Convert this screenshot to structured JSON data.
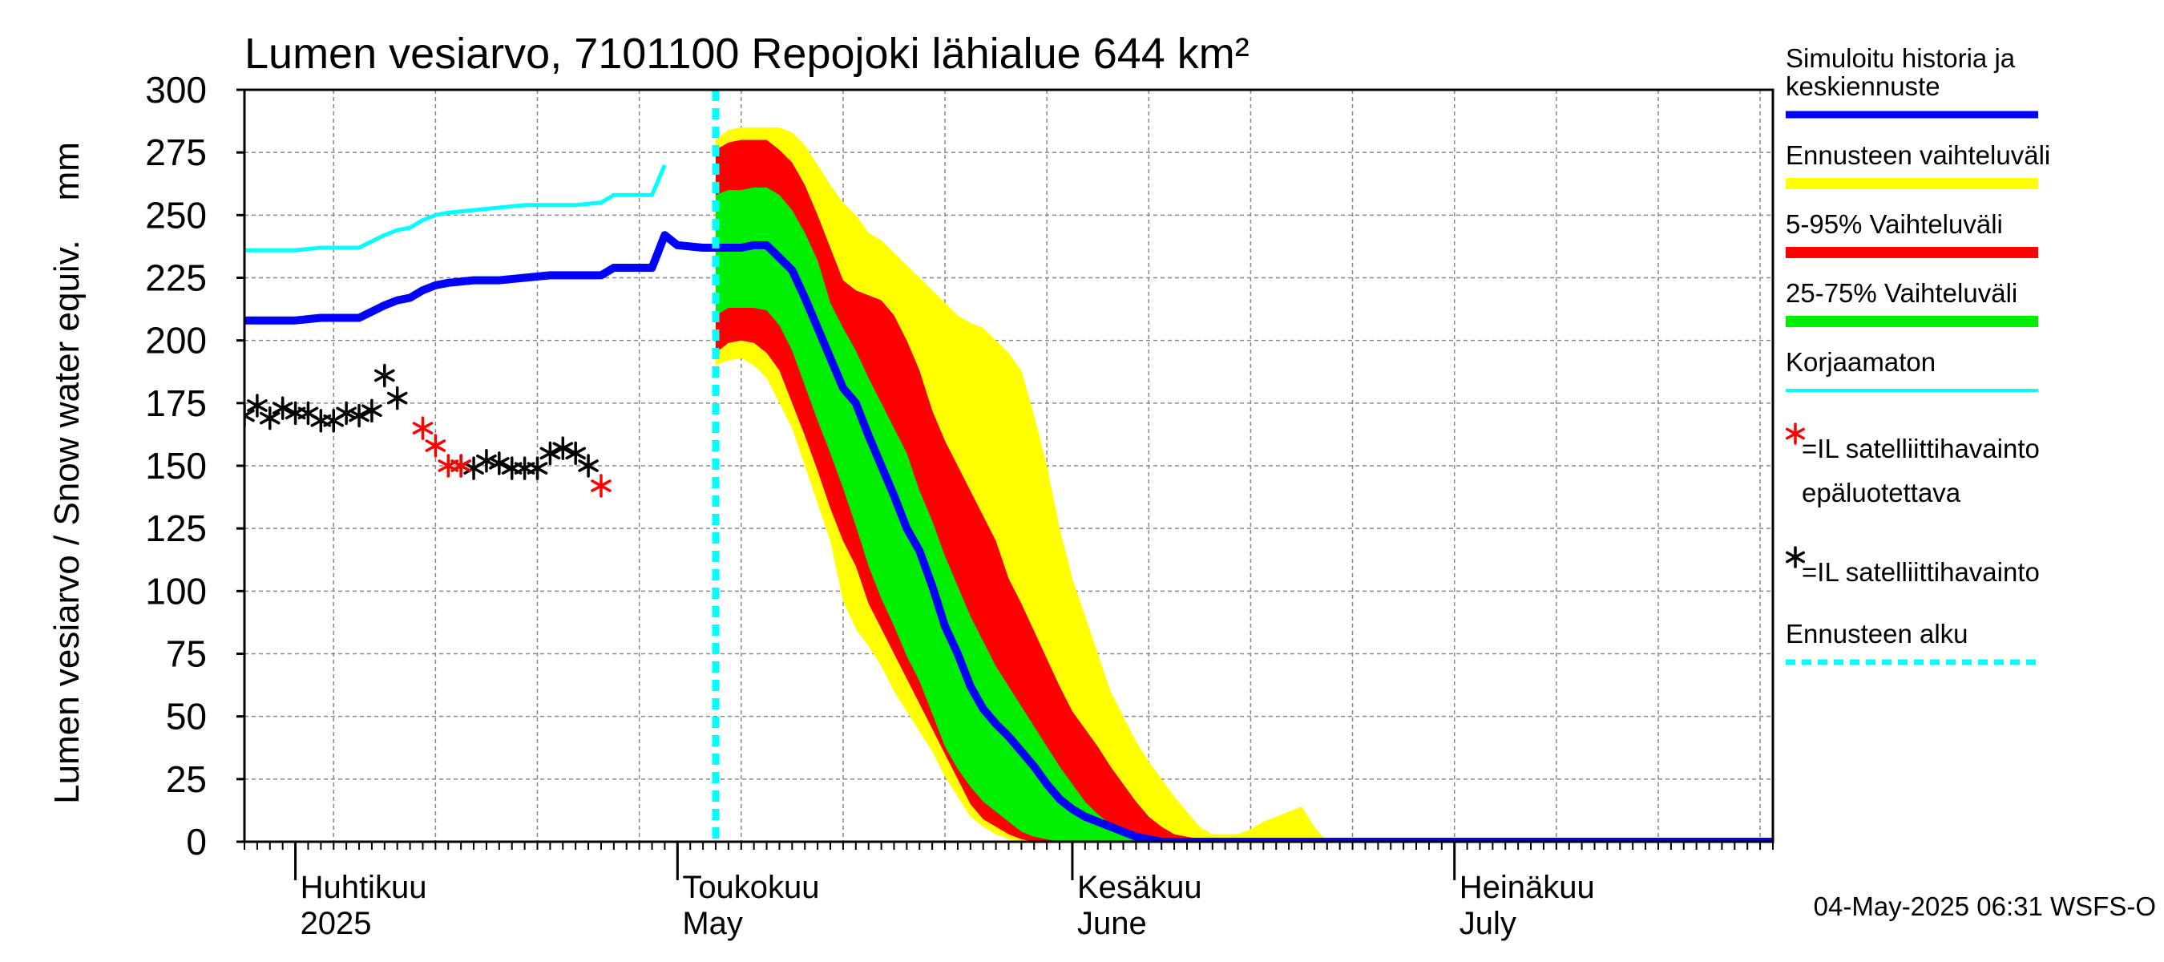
{
  "chart_data": {
    "type": "area",
    "title": "Lumen vesiarvo, 7101100 Repojoki lähialue 644 km²",
    "ylabel": "Lumen vesiarvo / Snow water equiv.    mm",
    "ylim": [
      0,
      300
    ],
    "yticks": [
      0,
      25,
      50,
      75,
      100,
      125,
      150,
      175,
      200,
      225,
      250,
      275,
      300
    ],
    "xlim": [
      "2025-03-28",
      "2025-07-26"
    ],
    "month_labels": [
      {
        "date": "2025-04-01",
        "line1": "Huhtikuu",
        "line2": "2025"
      },
      {
        "date": "2025-05-01",
        "line1": "Toukokuu",
        "line2": "May"
      },
      {
        "date": "2025-06-01",
        "line1": "Kesäkuu",
        "line2": "June"
      },
      {
        "date": "2025-07-01",
        "line1": "Heinäkuu",
        "line2": "July"
      }
    ],
    "forecast_start": "2025-05-04",
    "footer": "04-May-2025 06:31 WSFS-O",
    "colors": {
      "simulated": "#0000ff",
      "uncorrected": "#00ffff",
      "range_full": "#ffff00",
      "range_5_95": "#ff0000",
      "range_25_75": "#00ee00",
      "sat_unreliable": "#ff0000",
      "sat": "#000000",
      "forecast_start": "#00ffff"
    },
    "legend": [
      {
        "key": "simulated",
        "lines": [
          "Simuloitu historia ja",
          "keskiennuste"
        ],
        "kind": "line"
      },
      {
        "key": "range_full",
        "lines": [
          "Ennusteen vaihteluväli"
        ],
        "kind": "band"
      },
      {
        "key": "range_5_95",
        "lines": [
          "5-95% Vaihteluväli"
        ],
        "kind": "band"
      },
      {
        "key": "range_25_75",
        "lines": [
          "25-75% Vaihteluväli"
        ],
        "kind": "band"
      },
      {
        "key": "uncorrected",
        "lines": [
          "Korjaamaton"
        ],
        "kind": "thin"
      },
      {
        "key": "sat_unreliable",
        "lines": [
          "=IL satelliittihavainto",
          "epäluotettava"
        ],
        "kind": "star"
      },
      {
        "key": "sat",
        "lines": [
          "=IL satelliittihavainto"
        ],
        "kind": "star"
      },
      {
        "key": "forecast_start",
        "lines": [
          "Ennusteen alku"
        ],
        "kind": "dash"
      }
    ],
    "series": {
      "simulated": [
        [
          "2025-03-28",
          208
        ],
        [
          "2025-04-01",
          208
        ],
        [
          "2025-04-03",
          209
        ],
        [
          "2025-04-06",
          209
        ],
        [
          "2025-04-08",
          214
        ],
        [
          "2025-04-09",
          216
        ],
        [
          "2025-04-10",
          217
        ],
        [
          "2025-04-11",
          220
        ],
        [
          "2025-04-12",
          222
        ],
        [
          "2025-04-13",
          223
        ],
        [
          "2025-04-15",
          224
        ],
        [
          "2025-04-17",
          224
        ],
        [
          "2025-04-19",
          225
        ],
        [
          "2025-04-21",
          226
        ],
        [
          "2025-04-23",
          226
        ],
        [
          "2025-04-25",
          226
        ],
        [
          "2025-04-26",
          229
        ],
        [
          "2025-04-28",
          229
        ],
        [
          "2025-04-29",
          229
        ],
        [
          "2025-04-30",
          242
        ],
        [
          "2025-05-01",
          238
        ],
        [
          "2025-05-03",
          237
        ],
        [
          "2025-05-04",
          237
        ],
        [
          "2025-05-06",
          237
        ],
        [
          "2025-05-07",
          238
        ],
        [
          "2025-05-08",
          238
        ],
        [
          "2025-05-09",
          233
        ],
        [
          "2025-05-10",
          228
        ],
        [
          "2025-05-11",
          217
        ],
        [
          "2025-05-12",
          205
        ],
        [
          "2025-05-13",
          193
        ],
        [
          "2025-05-14",
          181
        ],
        [
          "2025-05-15",
          175
        ],
        [
          "2025-05-16",
          162
        ],
        [
          "2025-05-17",
          150
        ],
        [
          "2025-05-18",
          138
        ],
        [
          "2025-05-19",
          125
        ],
        [
          "2025-05-20",
          116
        ],
        [
          "2025-05-21",
          102
        ],
        [
          "2025-05-22",
          86
        ],
        [
          "2025-05-23",
          75
        ],
        [
          "2025-05-24",
          62
        ],
        [
          "2025-05-25",
          53
        ],
        [
          "2025-05-26",
          47
        ],
        [
          "2025-05-27",
          42
        ],
        [
          "2025-05-28",
          36
        ],
        [
          "2025-05-29",
          30
        ],
        [
          "2025-05-30",
          23
        ],
        [
          "2025-05-31",
          17
        ],
        [
          "2025-06-01",
          13
        ],
        [
          "2025-06-02",
          10
        ],
        [
          "2025-06-03",
          8
        ],
        [
          "2025-06-04",
          6
        ],
        [
          "2025-06-05",
          4
        ],
        [
          "2025-06-06",
          2
        ],
        [
          "2025-06-07",
          1
        ],
        [
          "2025-06-08",
          0
        ],
        [
          "2025-07-26",
          0
        ]
      ],
      "uncorrected": [
        [
          "2025-03-28",
          236
        ],
        [
          "2025-04-01",
          236
        ],
        [
          "2025-04-03",
          237
        ],
        [
          "2025-04-06",
          237
        ],
        [
          "2025-04-08",
          242
        ],
        [
          "2025-04-09",
          244
        ],
        [
          "2025-04-10",
          245
        ],
        [
          "2025-04-11",
          248
        ],
        [
          "2025-04-12",
          250
        ],
        [
          "2025-04-13",
          251
        ],
        [
          "2025-04-15",
          252
        ],
        [
          "2025-04-17",
          253
        ],
        [
          "2025-04-19",
          254
        ],
        [
          "2025-04-21",
          254
        ],
        [
          "2025-04-23",
          254
        ],
        [
          "2025-04-25",
          255
        ],
        [
          "2025-04-26",
          258
        ],
        [
          "2025-04-28",
          258
        ],
        [
          "2025-04-29",
          258
        ],
        [
          "2025-04-30",
          270
        ]
      ],
      "range_full": {
        "x": [
          "2025-05-04",
          "2025-05-05",
          "2025-05-06",
          "2025-05-07",
          "2025-05-08",
          "2025-05-09",
          "2025-05-10",
          "2025-05-11",
          "2025-05-12",
          "2025-05-13",
          "2025-05-14",
          "2025-05-15",
          "2025-05-16",
          "2025-05-17",
          "2025-05-18",
          "2025-05-19",
          "2025-05-20",
          "2025-05-21",
          "2025-05-22",
          "2025-05-23",
          "2025-05-24",
          "2025-05-25",
          "2025-05-26",
          "2025-05-27",
          "2025-05-28",
          "2025-05-29",
          "2025-05-30",
          "2025-05-31",
          "2025-06-01",
          "2025-06-02",
          "2025-06-03",
          "2025-06-04",
          "2025-06-05",
          "2025-06-06",
          "2025-06-07",
          "2025-06-08",
          "2025-06-09",
          "2025-06-10",
          "2025-06-11",
          "2025-06-12",
          "2025-06-13",
          "2025-06-14",
          "2025-06-15",
          "2025-06-16",
          "2025-06-17",
          "2025-06-18",
          "2025-06-19",
          "2025-06-20",
          "2025-06-21"
        ],
        "upper": [
          280,
          284,
          285,
          285,
          285,
          285,
          283,
          278,
          270,
          262,
          255,
          250,
          243,
          240,
          235,
          230,
          225,
          220,
          215,
          210,
          207,
          205,
          200,
          195,
          188,
          170,
          150,
          125,
          105,
          90,
          75,
          60,
          50,
          40,
          32,
          25,
          18,
          12,
          6,
          3,
          3,
          3,
          5,
          8,
          10,
          12,
          14,
          6,
          0
        ],
        "lower": [
          190,
          192,
          193,
          190,
          185,
          175,
          165,
          150,
          135,
          120,
          96,
          85,
          78,
          70,
          60,
          52,
          44,
          36,
          26,
          18,
          10,
          6,
          3,
          1,
          0,
          0,
          0,
          0,
          0,
          0,
          0,
          0,
          0,
          0,
          0,
          0,
          0,
          0,
          0,
          0,
          0,
          0,
          0,
          0,
          0,
          0,
          0,
          0,
          0
        ]
      },
      "range_5_95": {
        "x": [
          "2025-05-04",
          "2025-05-05",
          "2025-05-06",
          "2025-05-07",
          "2025-05-08",
          "2025-05-09",
          "2025-05-10",
          "2025-05-11",
          "2025-05-12",
          "2025-05-13",
          "2025-05-14",
          "2025-05-15",
          "2025-05-16",
          "2025-05-17",
          "2025-05-18",
          "2025-05-19",
          "2025-05-20",
          "2025-05-21",
          "2025-05-22",
          "2025-05-23",
          "2025-05-24",
          "2025-05-25",
          "2025-05-26",
          "2025-05-27",
          "2025-05-28",
          "2025-05-29",
          "2025-05-30",
          "2025-05-31",
          "2025-06-01",
          "2025-06-02",
          "2025-06-03",
          "2025-06-04",
          "2025-06-05",
          "2025-06-06",
          "2025-06-07",
          "2025-06-08",
          "2025-06-09",
          "2025-06-10",
          "2025-06-11",
          "2025-06-12",
          "2025-06-13",
          "2025-06-14"
        ],
        "upper": [
          276,
          279,
          280,
          280,
          280,
          276,
          271,
          262,
          250,
          237,
          224,
          220,
          218,
          216,
          210,
          200,
          188,
          172,
          160,
          150,
          140,
          130,
          120,
          105,
          95,
          84,
          73,
          62,
          52,
          45,
          38,
          30,
          23,
          16,
          10,
          6,
          3,
          2,
          1,
          0,
          0,
          0
        ],
        "lower": [
          195,
          199,
          200,
          199,
          195,
          188,
          175,
          162,
          148,
          133,
          120,
          110,
          95,
          85,
          75,
          65,
          55,
          45,
          35,
          25,
          15,
          9,
          6,
          3,
          1,
          0,
          0,
          0,
          0,
          0,
          0,
          0,
          0,
          0,
          0,
          0,
          0,
          0,
          0,
          0,
          0,
          0
        ]
      },
      "range_25_75": {
        "x": [
          "2025-05-04",
          "2025-05-05",
          "2025-05-06",
          "2025-05-07",
          "2025-05-08",
          "2025-05-09",
          "2025-05-10",
          "2025-05-11",
          "2025-05-12",
          "2025-05-13",
          "2025-05-14",
          "2025-05-15",
          "2025-05-16",
          "2025-05-17",
          "2025-05-18",
          "2025-05-19",
          "2025-05-20",
          "2025-05-21",
          "2025-05-22",
          "2025-05-23",
          "2025-05-24",
          "2025-05-25",
          "2025-05-26",
          "2025-05-27",
          "2025-05-28",
          "2025-05-29",
          "2025-05-30",
          "2025-05-31",
          "2025-06-01",
          "2025-06-02",
          "2025-06-03",
          "2025-06-04",
          "2025-06-05",
          "2025-06-06",
          "2025-06-07",
          "2025-06-08",
          "2025-06-09"
        ],
        "upper": [
          258,
          260,
          260,
          261,
          261,
          258,
          252,
          243,
          232,
          215,
          205,
          196,
          185,
          175,
          165,
          155,
          140,
          128,
          114,
          102,
          90,
          80,
          70,
          62,
          54,
          46,
          38,
          30,
          23,
          16,
          11,
          7,
          4,
          2,
          1,
          0,
          0
        ],
        "lower": [
          210,
          213,
          213,
          213,
          212,
          206,
          196,
          182,
          168,
          155,
          141,
          126,
          110,
          97,
          86,
          74,
          64,
          51,
          38,
          29,
          22,
          16,
          12,
          8,
          4,
          2,
          1,
          0,
          0,
          0,
          0,
          0,
          0,
          0,
          0,
          0,
          0
        ]
      },
      "sat": [
        [
          "2025-03-28",
          170
        ],
        [
          "2025-03-29",
          174
        ],
        [
          "2025-03-30",
          169
        ],
        [
          "2025-03-31",
          173
        ],
        [
          "2025-04-01",
          171
        ],
        [
          "2025-04-02",
          171
        ],
        [
          "2025-04-03",
          168
        ],
        [
          "2025-04-04",
          168
        ],
        [
          "2025-04-05",
          171
        ],
        [
          "2025-04-06",
          170
        ],
        [
          "2025-04-07",
          172
        ],
        [
          "2025-04-08",
          186
        ],
        [
          "2025-04-09",
          177
        ],
        [
          "2025-04-14",
          150
        ],
        [
          "2025-04-15",
          149
        ],
        [
          "2025-04-16",
          152
        ],
        [
          "2025-04-17",
          151
        ],
        [
          "2025-04-18",
          149
        ],
        [
          "2025-04-19",
          149
        ],
        [
          "2025-04-20",
          149
        ],
        [
          "2025-04-21",
          155
        ],
        [
          "2025-04-22",
          157
        ],
        [
          "2025-04-23",
          155
        ],
        [
          "2025-04-24",
          150
        ]
      ],
      "sat_unreliable": [
        [
          "2025-04-11",
          165
        ],
        [
          "2025-04-12",
          158
        ],
        [
          "2025-04-13",
          150
        ],
        [
          "2025-04-14",
          150
        ],
        [
          "2025-04-25",
          142
        ]
      ]
    }
  }
}
